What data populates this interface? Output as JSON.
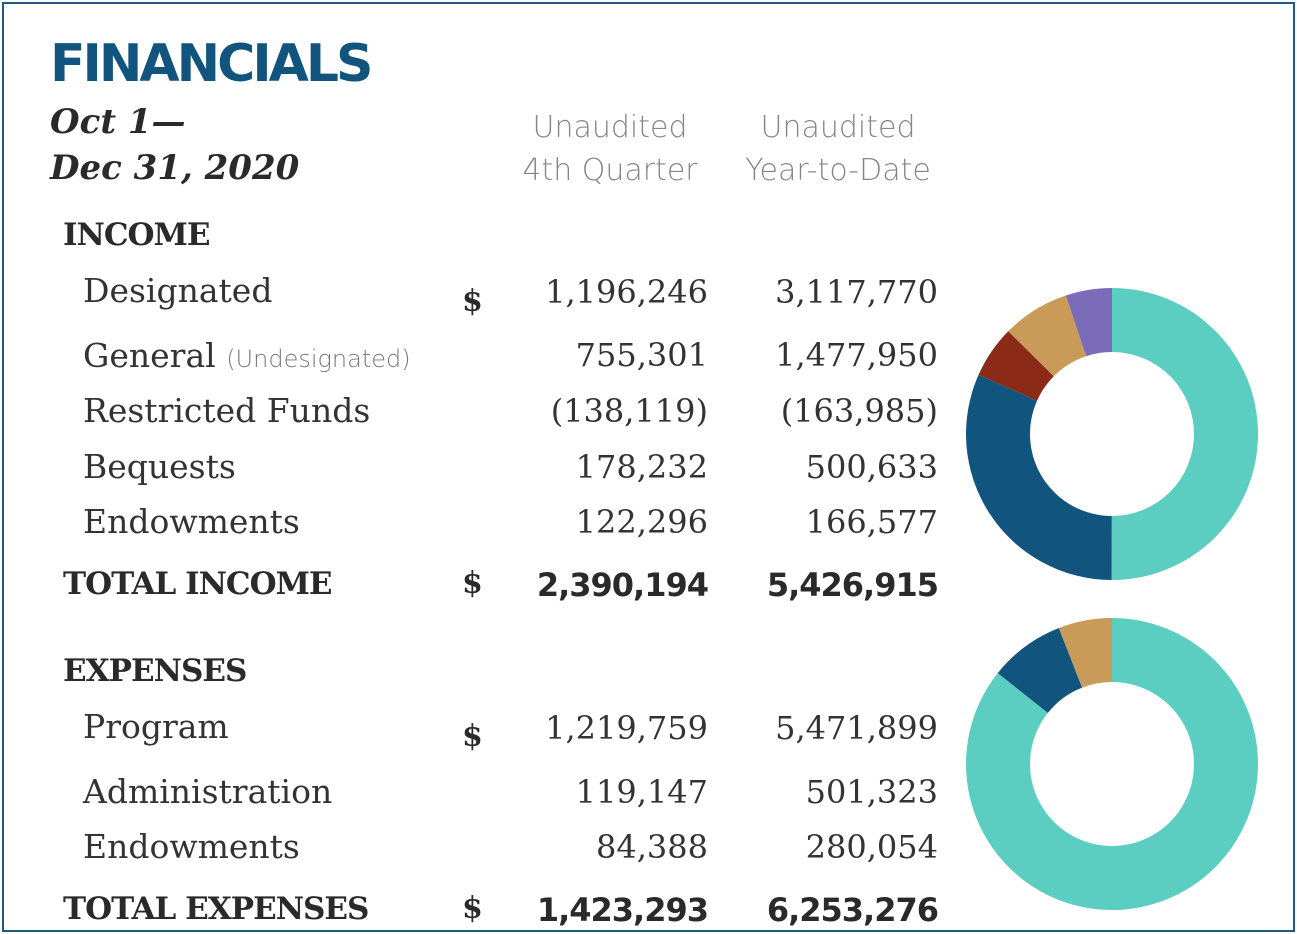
{
  "title": "FINANCIALS",
  "period": {
    "line1": "Oct 1—",
    "line2": "Dec 31, 2020"
  },
  "columns": {
    "quarter": {
      "line1": "Unaudited",
      "line2": "4th Quarter"
    },
    "ytd": {
      "line1": "Unaudited",
      "line2": "Year-to-Date"
    }
  },
  "currency_symbol": "$",
  "income": {
    "heading": "INCOME",
    "rows": [
      {
        "label": "Designated",
        "note": "",
        "quarter": "1,196,246",
        "ytd": "3,117,770"
      },
      {
        "label": "General",
        "note": "(Undesignated)",
        "quarter": "755,301",
        "ytd": "1,477,950"
      },
      {
        "label": "Restricted Funds",
        "note": "",
        "quarter": "(138,119)",
        "ytd": "(163,985)"
      },
      {
        "label": "Bequests",
        "note": "",
        "quarter": "178,232",
        "ytd": "500,633"
      },
      {
        "label": "Endowments",
        "note": "",
        "quarter": "122,296",
        "ytd": "166,577"
      }
    ],
    "total": {
      "label": "TOTAL INCOME",
      "quarter": "2,390,194",
      "ytd": "5,426,915"
    }
  },
  "expenses": {
    "heading": "EXPENSES",
    "rows": [
      {
        "label": "Program",
        "quarter": "1,219,759",
        "ytd": "5,471,899"
      },
      {
        "label": "Administration",
        "quarter": "119,147",
        "ytd": "501,323"
      },
      {
        "label": "Endowments",
        "quarter": "84,388",
        "ytd": "280,054"
      }
    ],
    "total": {
      "label": "TOTAL EXPENSES",
      "quarter": "1,423,293",
      "ytd": "6,253,276"
    }
  },
  "chart_data": [
    {
      "type": "pie",
      "donut": true,
      "title": "",
      "categories": [
        "Designated",
        "General",
        "Restricted Funds",
        "Bequests",
        "Endowments"
      ],
      "values": [
        1196246,
        755301,
        138119,
        178232,
        122296
      ],
      "colors": [
        "#5ccdc1",
        "#11557e",
        "#8b2a17",
        "#c99a58",
        "#7a6cb8"
      ]
    },
    {
      "type": "pie",
      "donut": true,
      "title": "",
      "categories": [
        "Program",
        "Administration",
        "Endowments"
      ],
      "values": [
        1219759,
        119147,
        84388
      ],
      "colors": [
        "#5ccdc1",
        "#11557e",
        "#c99a58"
      ]
    }
  ]
}
